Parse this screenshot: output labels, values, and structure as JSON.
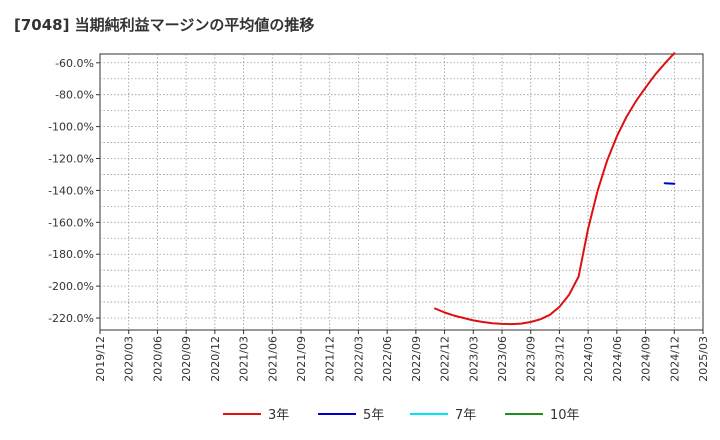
{
  "chart_data": {
    "type": "line",
    "title": "[7048]  当期純利益マージンの平均値の推移",
    "xlabel": "",
    "ylabel": "",
    "ylim": [
      -227.5,
      -54.5
    ],
    "yticks": [
      -60,
      -80,
      -100,
      -120,
      -140,
      -160,
      -180,
      -200,
      -220
    ],
    "ytick_labels": [
      "-60.0%",
      "-80.0%",
      "-100.0%",
      "-120.0%",
      "-140.0%",
      "-160.0%",
      "-180.0%",
      "-200.0%",
      "-220.0%"
    ],
    "xticks": [
      "2019/12",
      "2020/03",
      "2020/06",
      "2020/09",
      "2020/12",
      "2021/03",
      "2021/06",
      "2021/09",
      "2021/12",
      "2022/03",
      "2022/06",
      "2022/09",
      "2022/12",
      "2023/03",
      "2023/06",
      "2023/09",
      "2023/12",
      "2024/03",
      "2024/06",
      "2024/09",
      "2024/12",
      "2025/03"
    ],
    "grid": true,
    "legend_position": "bottom",
    "series": [
      {
        "name": "3年",
        "color": "#dd1111",
        "x": [
          "2022/11",
          "2022/12",
          "2023/01",
          "2023/02",
          "2023/03",
          "2023/04",
          "2023/05",
          "2023/06",
          "2023/07",
          "2023/08",
          "2023/09",
          "2023/10",
          "2023/11",
          "2023/12",
          "2024/01",
          "2024/02",
          "2024/03",
          "2024/04",
          "2024/05",
          "2024/06",
          "2024/07",
          "2024/08",
          "2024/09",
          "2024/10",
          "2024/11",
          "2024/12"
        ],
        "values": [
          -214,
          -216.5,
          -218.5,
          -220,
          -221.5,
          -222.5,
          -223.3,
          -223.7,
          -223.8,
          -223.5,
          -222.5,
          -220.8,
          -218,
          -213,
          -205.5,
          -194,
          -164,
          -140,
          -121,
          -106,
          -94,
          -84,
          -75.5,
          -67.5,
          -60.5,
          -54
        ]
      },
      {
        "name": "5年",
        "color": "#0000cc",
        "x": [
          "2024/11",
          "2024/12"
        ],
        "values": [
          -135.5,
          -135.8
        ]
      },
      {
        "name": "7年",
        "color": "#00e5ee",
        "x": [],
        "values": []
      },
      {
        "name": "10年",
        "color": "#228b22",
        "x": [],
        "values": []
      }
    ]
  }
}
